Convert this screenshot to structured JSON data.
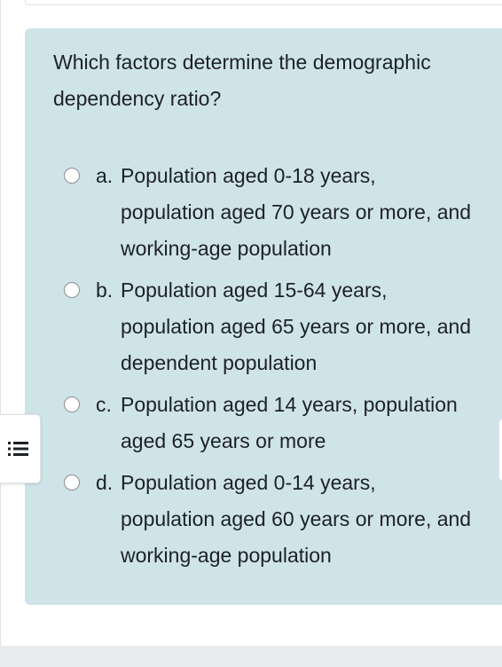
{
  "question": {
    "text": "Which factors determine the demographic dependency ratio?"
  },
  "answers": [
    {
      "letter": "a.",
      "text": "Population aged 0-18 years, population aged 70 years or more, and working-age population"
    },
    {
      "letter": "b.",
      "text": "Population aged 15-64 years, population aged 65 years or more, and dependent population"
    },
    {
      "letter": "c.",
      "text": "Population aged 14 years, population aged 65 years or more"
    },
    {
      "letter": "d.",
      "text": "Population aged 0-14 years, population aged 60 years or more, and working-age population"
    }
  ],
  "drawer_toggle": {
    "icon": "list-icon"
  },
  "colors": {
    "question_background": "#cfe4e8",
    "text": "#1d2125",
    "page_footer": "#e9ecef"
  }
}
